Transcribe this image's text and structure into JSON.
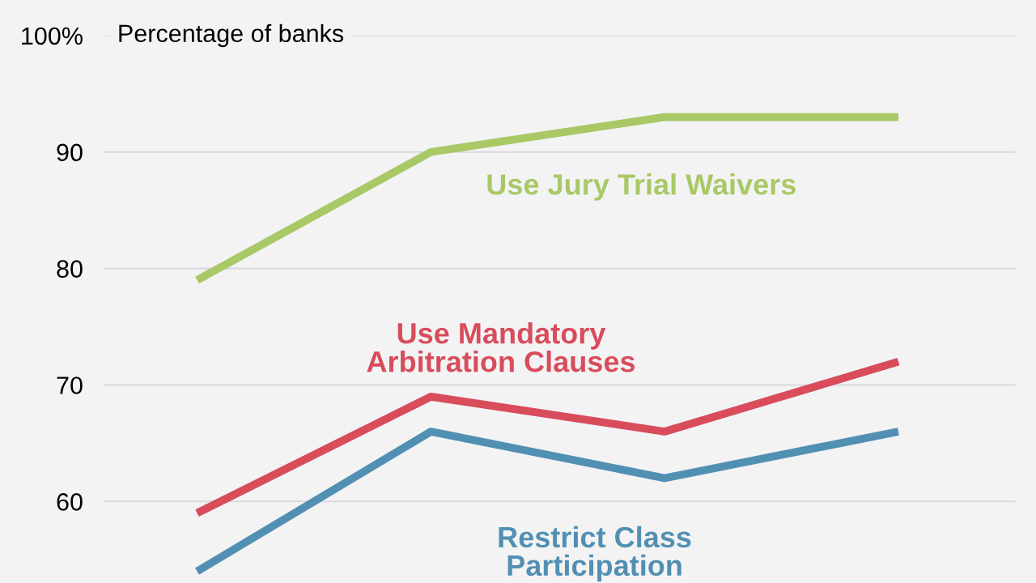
{
  "chart_data": {
    "type": "line",
    "ylabel": "Percentage of banks",
    "categories": [
      null,
      null,
      null,
      null
    ],
    "series": [
      {
        "name": "Use Jury Trial Waivers",
        "color": "#a9c866",
        "values": [
          79,
          90,
          93,
          93
        ]
      },
      {
        "name": "Use Mandatory\nArbitration Clauses",
        "color": "#d84c5c",
        "values": [
          59,
          69,
          66,
          72
        ]
      },
      {
        "name": "Restrict Class\nParticipation",
        "color": "#5290b3",
        "values": [
          54,
          66,
          62,
          66
        ]
      }
    ],
    "ylim": [
      53,
      100
    ],
    "yticks": [
      {
        "value": 100,
        "label": "100%"
      },
      90,
      80,
      70,
      60
    ],
    "grid": "y",
    "legend": false,
    "marker": "none",
    "line_style": "solid"
  }
}
